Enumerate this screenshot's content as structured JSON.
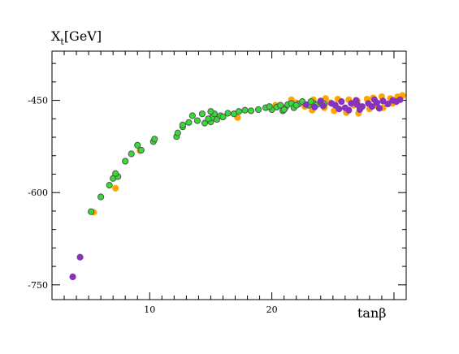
{
  "chart_data": {
    "type": "scatter",
    "ylabel_main": "X",
    "ylabel_sub": "t",
    "ylabel_unit": "[GeV]",
    "xlabel": "tanβ",
    "xlim": [
      2,
      31
    ],
    "ylim": [
      -774,
      -370
    ],
    "x_ticks": [
      10,
      20
    ],
    "y_ticks": [
      -750,
      -600,
      -450
    ],
    "grid": false,
    "series": [
      {
        "style": "green",
        "fill": "#33dd33",
        "stroke": "#555555",
        "points": [
          [
            5.2,
            -631
          ],
          [
            6.0,
            -607
          ],
          [
            6.7,
            -588
          ],
          [
            7.0,
            -577
          ],
          [
            7.4,
            -574
          ],
          [
            7.2,
            -569
          ],
          [
            8.0,
            -549
          ],
          [
            8.5,
            -537
          ],
          [
            9.3,
            -531
          ],
          [
            9.0,
            -523
          ],
          [
            10.3,
            -517
          ],
          [
            10.4,
            -513
          ],
          [
            12.2,
            -509
          ],
          [
            12.3,
            -503
          ],
          [
            12.7,
            -493
          ],
          [
            13.2,
            -486
          ],
          [
            13.9,
            -483
          ],
          [
            14.5,
            -487
          ],
          [
            15.0,
            -485
          ],
          [
            15.5,
            -481
          ],
          [
            15.1,
            -478
          ],
          [
            15.8,
            -475
          ],
          [
            16.0,
            -477
          ],
          [
            15.3,
            -472
          ],
          [
            13.5,
            -475
          ],
          [
            14.3,
            -472
          ],
          [
            15.0,
            -468
          ],
          [
            16.4,
            -471
          ],
          [
            17.3,
            -468
          ],
          [
            17.8,
            -466
          ],
          [
            18.3,
            -467
          ],
          [
            18.9,
            -465
          ],
          [
            19.5,
            -462
          ],
          [
            20.0,
            -465
          ],
          [
            20.4,
            -461
          ],
          [
            20.9,
            -467
          ],
          [
            21.1,
            -462
          ],
          [
            21.3,
            -457
          ],
          [
            21.6,
            -455
          ],
          [
            20.7,
            -458
          ],
          [
            21.8,
            -462
          ],
          [
            22.2,
            -456
          ],
          [
            22.5,
            -452
          ],
          [
            23.0,
            -458
          ],
          [
            23.4,
            -455
          ],
          [
            23.7,
            -457
          ],
          [
            24.0,
            -453
          ],
          [
            24.3,
            -456
          ],
          [
            21.0,
            -465
          ],
          [
            22.0,
            -458
          ],
          [
            23.2,
            -452
          ],
          [
            19.8,
            -460
          ],
          [
            16.9,
            -472
          ],
          [
            14.8,
            -480
          ],
          [
            12.7,
            -490
          ]
        ]
      },
      {
        "style": "orange",
        "fill": "#ffa500",
        "stroke": "#ffa500",
        "points": [
          [
            5.4,
            -632
          ],
          [
            7.2,
            -593
          ],
          [
            9.2,
            -532
          ],
          [
            17.2,
            -478
          ],
          [
            20.3,
            -458
          ],
          [
            22.0,
            -454
          ],
          [
            23.4,
            -449
          ],
          [
            24.4,
            -447
          ],
          [
            25.4,
            -448
          ],
          [
            26.3,
            -449
          ],
          [
            27.0,
            -451
          ],
          [
            27.8,
            -448
          ],
          [
            28.3,
            -446
          ],
          [
            29.0,
            -444
          ],
          [
            29.7,
            -447
          ],
          [
            30.3,
            -444
          ],
          [
            30.7,
            -442
          ],
          [
            24.3,
            -462
          ],
          [
            25.1,
            -467
          ],
          [
            26.1,
            -470
          ],
          [
            27.1,
            -471
          ],
          [
            28.0,
            -464
          ],
          [
            29.1,
            -462
          ],
          [
            21.6,
            -449
          ],
          [
            22.7,
            -460
          ],
          [
            23.3,
            -466
          ],
          [
            24.8,
            -454
          ],
          [
            26.7,
            -458
          ],
          [
            28.6,
            -459
          ],
          [
            29.9,
            -455
          ]
        ]
      },
      {
        "style": "purple",
        "fill": "#8833bb",
        "stroke": "#8833bb",
        "points": [
          [
            3.7,
            -737
          ],
          [
            4.3,
            -705
          ],
          [
            22.8,
            -457
          ],
          [
            23.5,
            -461
          ],
          [
            24.2,
            -459
          ],
          [
            24.9,
            -455
          ],
          [
            25.2,
            -458
          ],
          [
            25.5,
            -464
          ],
          [
            26.0,
            -462
          ],
          [
            26.5,
            -455
          ],
          [
            27.0,
            -457
          ],
          [
            27.4,
            -460
          ],
          [
            27.9,
            -455
          ],
          [
            28.2,
            -460
          ],
          [
            28.6,
            -454
          ],
          [
            29.1,
            -451
          ],
          [
            29.5,
            -456
          ],
          [
            29.9,
            -450
          ],
          [
            30.2,
            -452
          ],
          [
            30.5,
            -449
          ],
          [
            26.3,
            -466
          ],
          [
            27.2,
            -465
          ],
          [
            28.8,
            -463
          ],
          [
            24.0,
            -451
          ],
          [
            25.7,
            -452
          ],
          [
            26.9,
            -450
          ],
          [
            28.4,
            -449
          ]
        ]
      }
    ]
  }
}
